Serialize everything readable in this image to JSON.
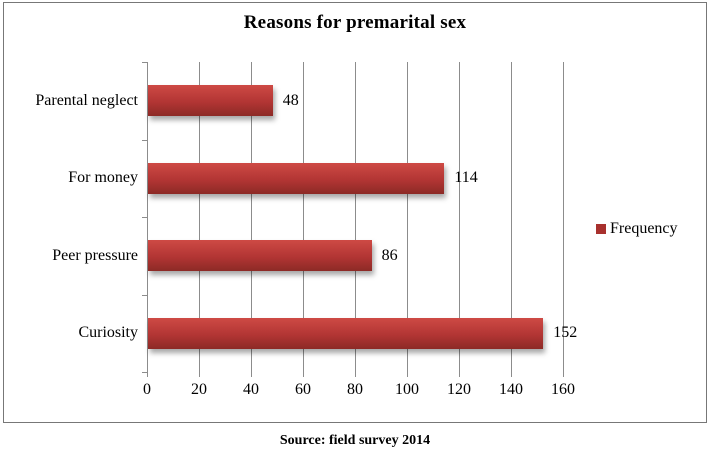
{
  "chart_data": {
    "type": "bar",
    "orientation": "horizontal",
    "title": "Reasons for premarital sex",
    "categories": [
      "Parental neglect",
      "For money",
      "Peer pressure",
      "Curiosity"
    ],
    "series": [
      {
        "name": "Frequency",
        "values": [
          48,
          114,
          86,
          152
        ]
      }
    ],
    "data_labels": [
      "48",
      "114",
      "86",
      "152"
    ],
    "xlabel": "",
    "ylabel": "",
    "xlim": [
      0,
      160
    ],
    "x_ticks": [
      0,
      20,
      40,
      60,
      80,
      100,
      120,
      140,
      160
    ],
    "grid": "vertical-gridlines-on",
    "legend_position": "right",
    "colors": {
      "bar_gradient_top": "#ce4a45",
      "bar_gradient_mid": "#b23534",
      "bar_gradient_bottom": "#8c2a26",
      "legend_swatch": "#a8312e",
      "grid_line": "#8c8c8c",
      "axis_line": "#8c8c8c",
      "frame_border": "#777777",
      "text": "#000000",
      "background": "#ffffff"
    }
  },
  "legend": {
    "label": "Frequency"
  },
  "footer": {
    "source_label": "Source: field survey 2014"
  }
}
